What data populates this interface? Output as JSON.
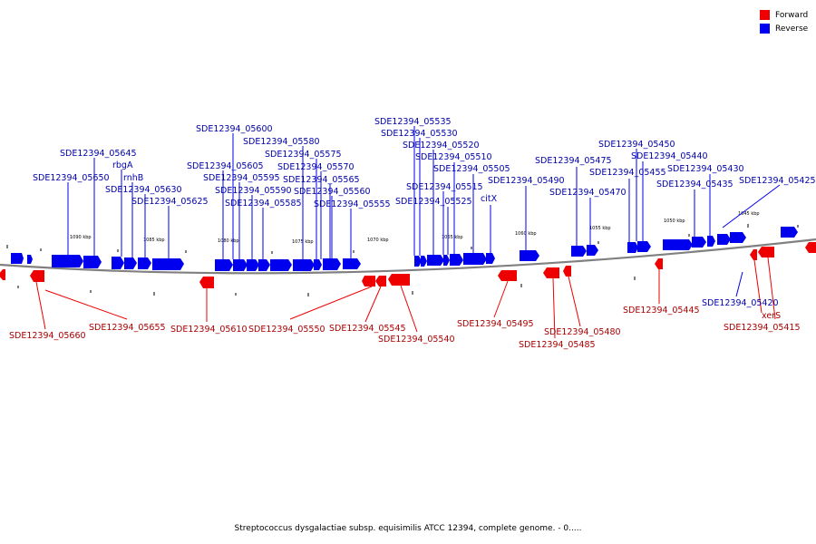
{
  "legend": {
    "forward_label": "Forward",
    "reverse_label": "Reverse",
    "forward_color": "#ee0000",
    "reverse_color": "#0000ee"
  },
  "caption": "Streptococcus dysgalactiae subsp. equisimilis ATCC 12394, complete genome. - 0.....",
  "scale_labels": [
    "1090 kbp",
    "1085 kbp",
    "1080 kbp",
    "1075 kbp",
    "1070 kbp",
    "1065 kbp",
    "1060 kbp",
    "1055 kbp",
    "1050 kbp",
    "1045 kbp"
  ],
  "reverse_genes": [
    "SDE12394_05650",
    "SDE12394_05645",
    "rbgA",
    "rnhB",
    "SDE12394_05630",
    "SDE12394_05625",
    "SDE12394_05605",
    "SDE12394_05600",
    "SDE12394_05595",
    "SDE12394_05590",
    "SDE12394_05585",
    "SDE12394_05580",
    "SDE12394_05575",
    "SDE12394_05570",
    "SDE12394_05565",
    "SDE12394_05560",
    "SDE12394_05555",
    "SDE12394_05535",
    "SDE12394_05530",
    "SDE12394_05520",
    "SDE12394_05515",
    "SDE12394_05525",
    "SDE12394_05510",
    "SDE12394_05505",
    "citX",
    "SDE12394_05490",
    "SDE12394_05475",
    "SDE12394_05470",
    "SDE12394_05455",
    "SDE12394_05450",
    "SDE12394_05440",
    "SDE12394_05435",
    "SDE12394_05430",
    "SDE12394_05425",
    "SDE12394_05420"
  ],
  "forward_genes": [
    "SDE12394_05660",
    "SDE12394_05655",
    "SDE12394_05610",
    "SDE12394_05550",
    "SDE12394_05545",
    "SDE12394_05540",
    "SDE12394_05495",
    "SDE12394_05480",
    "SDE12394_05485",
    "SDE12394_05445",
    "xerS",
    "SDE12394_05415"
  ]
}
